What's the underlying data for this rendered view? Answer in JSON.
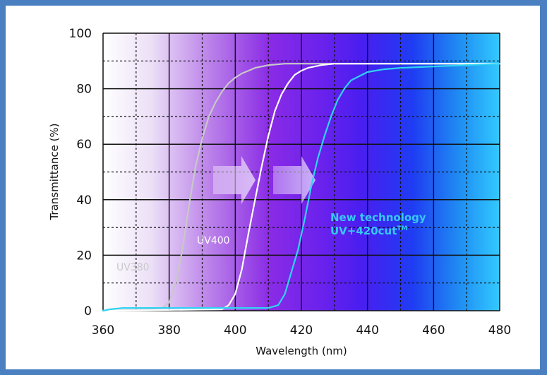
{
  "chart_data": {
    "type": "line",
    "xlabel": "Wavelength (nm)",
    "ylabel": "Transmittance (%)",
    "xlim": [
      360,
      480
    ],
    "ylim": [
      0,
      100
    ],
    "x_ticks": [
      360,
      380,
      400,
      420,
      440,
      460,
      480
    ],
    "y_ticks": [
      0,
      20,
      40,
      60,
      80,
      100
    ],
    "grid": true,
    "background": "violet-to-blue wavelength gradient",
    "series": [
      {
        "name": "UV380",
        "color": "#c8c8c8",
        "x": [
          360,
          376,
          378,
          380,
          382,
          384,
          386,
          388,
          390,
          392,
          394,
          396,
          398,
          400,
          402,
          404,
          406,
          408,
          410,
          415,
          420,
          430,
          440,
          460,
          480
        ],
        "y": [
          0,
          0.5,
          1,
          3,
          10,
          22,
          38,
          52,
          62,
          70,
          75,
          79,
          82,
          84,
          85.5,
          86.5,
          87.5,
          88,
          88.5,
          89,
          89,
          89,
          89,
          89,
          89
        ]
      },
      {
        "name": "UV400",
        "color": "#ffffff",
        "x": [
          360,
          396,
          398,
          400,
          402,
          404,
          406,
          408,
          410,
          412,
          414,
          416,
          418,
          420,
          422,
          424,
          426,
          430,
          440,
          460,
          480
        ],
        "y": [
          0,
          0.5,
          2,
          6,
          15,
          28,
          40,
          52,
          63,
          72,
          78,
          82,
          85,
          86.5,
          87.5,
          88,
          88.5,
          89,
          89,
          89,
          89
        ]
      },
      {
        "name": "New technology UV+420cut™",
        "color": "#2fd4f2",
        "x": [
          360,
          362,
          366,
          370,
          380,
          390,
          400,
          410,
          413,
          415,
          417,
          419,
          421,
          423,
          425,
          427,
          429,
          431,
          433,
          435,
          440,
          445,
          450,
          460,
          470,
          480
        ],
        "y": [
          0,
          0.5,
          1,
          1,
          1,
          1,
          1,
          1,
          2,
          6,
          14,
          22,
          33,
          45,
          55,
          63,
          70,
          76,
          80,
          83,
          86,
          87,
          87.5,
          88,
          88.5,
          89
        ]
      }
    ],
    "annotations": {
      "uv380_label": "UV380",
      "uv400_label": "UV400",
      "new_label_line1": "New technology",
      "new_label_line2": "UV+420cut",
      "new_label_tm": "TM",
      "new_label_color": "#37c8f5"
    }
  }
}
